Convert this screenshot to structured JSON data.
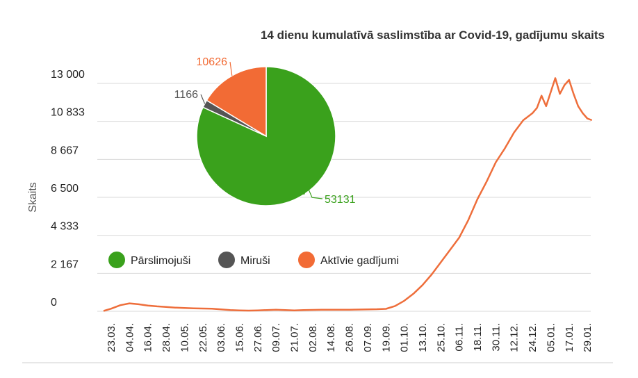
{
  "colors": {
    "line": "#ee6e3b",
    "grid": "#d9d9d9",
    "bottom_rule": "#cfcfcf",
    "recovered": "#3aa11c",
    "deceased": "#555555",
    "active": "#f26b35"
  },
  "chart_data": [
    {
      "type": "line",
      "title": "14 dienu kumulatīvā saslimstība ar Covid-19, gadījumu skaits",
      "xlabel": "",
      "ylabel": "Skaits",
      "y_ticks": [
        0,
        2167,
        4333,
        6500,
        8667,
        10833,
        13000
      ],
      "y_tick_labels": [
        "0",
        "2 167",
        "4 333",
        "6 500",
        "8 667",
        "10 833",
        "13 000"
      ],
      "ylim": [
        0,
        13000
      ],
      "x_tick_labels": [
        "23.03.",
        "04.04.",
        "16.04.",
        "28.04.",
        "10.05.",
        "22.05.",
        "03.06.",
        "15.06.",
        "27.06.",
        "09.07.",
        "21.07.",
        "02.08.",
        "14.08.",
        "26.08.",
        "07.09.",
        "19.09.",
        "01.10.",
        "13.10.",
        "25.10.",
        "06.11.",
        "18.11.",
        "30.11.",
        "12.12.",
        "24.12.",
        "05.01.",
        "17.01.",
        "29.01."
      ],
      "grid": true,
      "series": [
        {
          "x": [
            "18.03.",
            "23.03.",
            "29.03.",
            "04.04.",
            "10.04.",
            "16.04.",
            "22.04.",
            "28.04.",
            "04.05.",
            "10.05.",
            "16.05.",
            "22.05.",
            "28.05.",
            "03.06.",
            "09.06.",
            "15.06.",
            "21.06.",
            "27.06.",
            "03.07.",
            "09.07.",
            "15.07.",
            "21.07.",
            "27.07.",
            "02.08.",
            "08.08.",
            "14.08.",
            "20.08.",
            "26.08.",
            "01.09.",
            "07.09.",
            "13.09.",
            "19.09.",
            "25.09.",
            "01.10.",
            "07.10.",
            "13.10.",
            "19.10.",
            "25.10.",
            "31.10.",
            "06.11.",
            "12.11.",
            "18.11.",
            "24.11.",
            "30.11.",
            "06.12.",
            "12.12.",
            "18.12.",
            "24.12.",
            "27.12.",
            "30.12.",
            "02.01.",
            "05.01.",
            "08.01.",
            "11.01.",
            "14.01.",
            "17.01.",
            "20.01.",
            "23.01.",
            "26.01.",
            "29.01.",
            "01.02."
          ],
          "values": [
            20,
            150,
            350,
            450,
            400,
            330,
            280,
            250,
            210,
            190,
            170,
            160,
            150,
            110,
            70,
            50,
            40,
            50,
            70,
            90,
            70,
            50,
            70,
            80,
            90,
            90,
            90,
            90,
            100,
            110,
            120,
            140,
            300,
            600,
            1000,
            1500,
            2100,
            2800,
            3500,
            4200,
            5200,
            6400,
            7400,
            8500,
            9300,
            10200,
            10900,
            11300,
            11600,
            12300,
            11700,
            12500,
            13300,
            12400,
            12900,
            13200,
            12400,
            11700,
            11300,
            11000,
            10900
          ]
        }
      ]
    },
    {
      "type": "pie",
      "slices": [
        {
          "label": "Pārslimojuši",
          "value": 53131,
          "color": "#3aa11c"
        },
        {
          "label": "Miruši",
          "value": 1166,
          "color": "#555555"
        },
        {
          "label": "Aktīvie gadījumi",
          "value": 10626,
          "color": "#f26b35"
        }
      ],
      "slice_labels": [
        "53131",
        "1166",
        "10626"
      ],
      "legend": "bottom-left"
    }
  ]
}
